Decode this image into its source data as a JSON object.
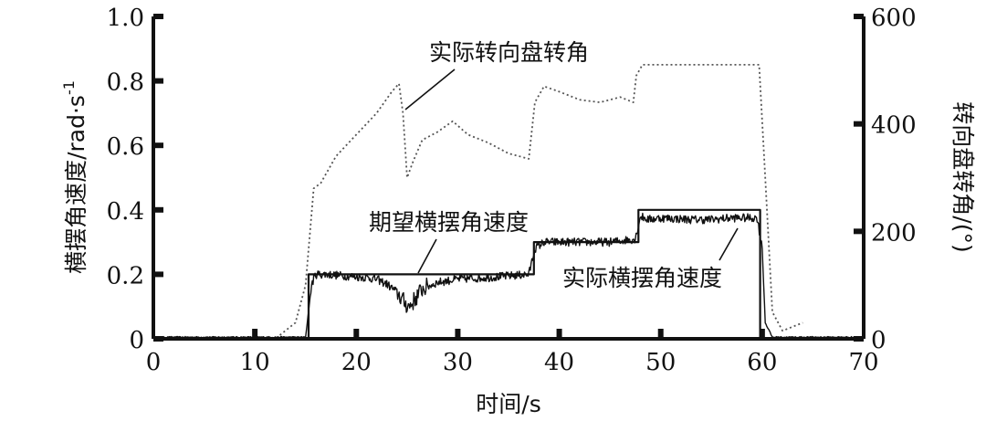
{
  "chart_data": {
    "type": "line",
    "xlabel": "时间/s",
    "ylabel_left": "横摆角速度/rad·s",
    "ylabel_left_exp": "-1",
    "ylabel_right": "转向盘转角/(°)",
    "xlim": [
      0,
      70
    ],
    "ylim_left": [
      0,
      1.0
    ],
    "ylim_right": [
      0,
      600
    ],
    "x_ticks": [
      "0",
      "10",
      "20",
      "30",
      "40",
      "50",
      "60",
      "70"
    ],
    "y_left_ticks": [
      "0",
      "0.2",
      "0.4",
      "0.6",
      "0.8",
      "1.0"
    ],
    "y_right_ticks": [
      "0",
      "200",
      "400",
      "600"
    ],
    "grid": false,
    "annotations": {
      "steering": "实际转向盘转角",
      "desired_yaw": "期望横摆角速度",
      "actual_yaw": "实际横摆角速度"
    },
    "series": [
      {
        "axis": "left",
        "style": "solid",
        "x": [
          0,
          15.3,
          15.3,
          37.5,
          37.5,
          47.8,
          47.8,
          59.8,
          59.8,
          70
        ],
        "y": [
          0,
          0,
          0.2,
          0.2,
          0.3,
          0.3,
          0.4,
          0.4,
          0,
          0
        ]
      },
      {
        "axis": "left",
        "style": "noisy",
        "x": [
          0,
          15.0,
          15.6,
          16.0,
          17,
          19,
          21,
          22,
          23,
          24,
          24.8,
          25.2,
          25.6,
          26.5,
          28,
          30,
          33,
          35,
          37.0,
          37.6,
          38.5,
          40,
          43,
          45,
          47.5,
          48.0,
          48.8,
          50,
          53,
          55,
          57,
          59.5,
          60.0,
          60.3,
          61,
          70
        ],
        "y": [
          0.005,
          0.005,
          0.17,
          0.2,
          0.2,
          0.195,
          0.19,
          0.185,
          0.17,
          0.145,
          0.11,
          0.1,
          0.115,
          0.155,
          0.175,
          0.185,
          0.19,
          0.195,
          0.2,
          0.28,
          0.3,
          0.3,
          0.3,
          0.3,
          0.31,
          0.38,
          0.37,
          0.375,
          0.37,
          0.37,
          0.375,
          0.375,
          0.28,
          0.05,
          0.005,
          0.005
        ]
      },
      {
        "axis": "right",
        "style": "dotted",
        "x": [
          0,
          12,
          14,
          15,
          15.8,
          16.5,
          18,
          20,
          22,
          23.5,
          24.2,
          24.6,
          25.0,
          25.6,
          26.5,
          28,
          29.5,
          31,
          33,
          35,
          37.0,
          37.6,
          38.5,
          40,
          42,
          44,
          46,
          47.3,
          47.6,
          48.2,
          50,
          55,
          59.7,
          60.3,
          61,
          62,
          64
        ],
        "y": [
          0,
          0,
          30,
          100,
          280,
          290,
          340,
          380,
          420,
          460,
          475,
          420,
          300,
          330,
          370,
          385,
          405,
          380,
          365,
          345,
          335,
          440,
          470,
          460,
          445,
          440,
          450,
          440,
          490,
          510,
          510,
          510,
          510,
          300,
          50,
          15,
          30
        ]
      }
    ]
  }
}
